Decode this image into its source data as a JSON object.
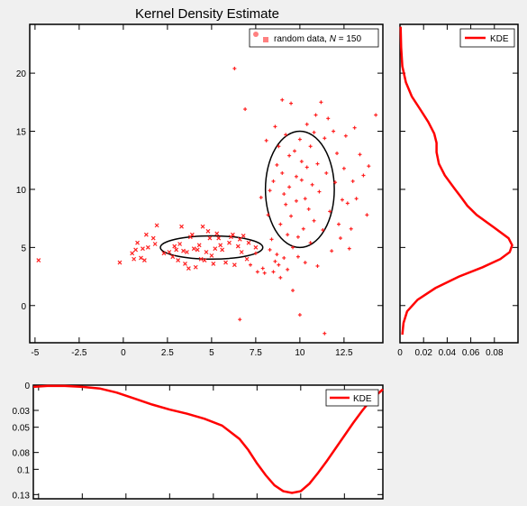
{
  "chart_data": [
    {
      "id": "scatter",
      "type": "scatter",
      "title": "Kernel Density Estimate",
      "xlim": [
        -5.3,
        14.7
      ],
      "ylim": [
        -3.2,
        24.2
      ],
      "xticks": [
        -5,
        -2.5,
        0,
        2.5,
        5,
        7.5,
        10,
        12.5
      ],
      "xtick_labels": [
        "-5",
        "-2.5",
        "0",
        "2.5",
        "5",
        "7.5",
        "10",
        "12.5"
      ],
      "yticks": [
        0,
        5,
        10,
        15,
        20
      ],
      "ytick_labels": [
        "0",
        "5",
        "10",
        "15",
        "20"
      ],
      "legend": {
        "label_prefix": "random data, ",
        "label_n": "N",
        "label_eq": " = ",
        "label_value": "150",
        "position": "top-right"
      },
      "colors": {
        "points": "#ff2020",
        "ellipse": "#000000",
        "legend_circle": "#ff8080",
        "legend_square": "#ff8080"
      },
      "series": [
        {
          "marker": "x",
          "points": [
            [
              -4.8,
              3.9
            ],
            [
              -0.2,
              3.7
            ],
            [
              0.5,
              4.5
            ],
            [
              0.6,
              4.0
            ],
            [
              0.7,
              4.8
            ],
            [
              0.8,
              5.4
            ],
            [
              1.0,
              4.1
            ],
            [
              1.1,
              4.9
            ],
            [
              1.2,
              3.9
            ],
            [
              1.3,
              6.1
            ],
            [
              1.4,
              5.0
            ],
            [
              1.7,
              5.8
            ],
            [
              1.8,
              5.3
            ],
            [
              1.9,
              6.9
            ],
            [
              2.3,
              4.5
            ],
            [
              2.6,
              4.6
            ],
            [
              2.8,
              4.2
            ],
            [
              2.9,
              5.1
            ],
            [
              3.0,
              4.8
            ],
            [
              3.1,
              3.9
            ],
            [
              3.2,
              5.3
            ],
            [
              3.3,
              6.8
            ],
            [
              3.4,
              4.7
            ],
            [
              3.5,
              3.6
            ],
            [
              3.6,
              4.6
            ],
            [
              3.7,
              3.2
            ],
            [
              3.8,
              5.9
            ],
            [
              3.9,
              6.1
            ],
            [
              4.0,
              4.9
            ],
            [
              4.1,
              3.3
            ],
            [
              4.2,
              4.8
            ],
            [
              4.3,
              5.2
            ],
            [
              4.4,
              4.0
            ],
            [
              4.5,
              6.8
            ],
            [
              4.6,
              3.9
            ],
            [
              4.7,
              4.6
            ],
            [
              4.8,
              6.4
            ],
            [
              4.9,
              5.8
            ],
            [
              5.0,
              4.3
            ],
            [
              5.1,
              3.6
            ],
            [
              5.2,
              4.9
            ],
            [
              5.3,
              6.2
            ],
            [
              5.4,
              5.8
            ],
            [
              5.5,
              5.2
            ],
            [
              5.6,
              4.8
            ],
            [
              5.8,
              3.7
            ],
            [
              6.0,
              5.4
            ],
            [
              6.1,
              5.9
            ],
            [
              6.2,
              6.1
            ],
            [
              6.3,
              3.5
            ],
            [
              6.5,
              5.1
            ],
            [
              6.6,
              5.7
            ],
            [
              6.7,
              4.6
            ],
            [
              6.8,
              6.0
            ],
            [
              7.0,
              4.0
            ],
            [
              7.1,
              5.4
            ],
            [
              7.5,
              5.0
            ]
          ]
        },
        {
          "marker": "+",
          "points": [
            [
              6.3,
              20.4
            ],
            [
              6.6,
              -1.2
            ],
            [
              6.9,
              16.9
            ],
            [
              7.2,
              3.5
            ],
            [
              7.5,
              4.5
            ],
            [
              7.6,
              2.9
            ],
            [
              7.8,
              9.3
            ],
            [
              7.9,
              3.2
            ],
            [
              8.0,
              2.8
            ],
            [
              8.1,
              14.2
            ],
            [
              8.2,
              7.8
            ],
            [
              8.3,
              4.8
            ],
            [
              8.3,
              9.9
            ],
            [
              8.4,
              5.7
            ],
            [
              8.5,
              10.7
            ],
            [
              8.5,
              2.9
            ],
            [
              8.6,
              3.8
            ],
            [
              8.6,
              15.4
            ],
            [
              8.7,
              12.1
            ],
            [
              8.7,
              4.4
            ],
            [
              8.8,
              13.7
            ],
            [
              8.8,
              3.5
            ],
            [
              8.9,
              7.0
            ],
            [
              8.9,
              2.4
            ],
            [
              9.0,
              17.7
            ],
            [
              9.0,
              11.4
            ],
            [
              9.1,
              9.6
            ],
            [
              9.1,
              4.1
            ],
            [
              9.2,
              14.7
            ],
            [
              9.2,
              8.7
            ],
            [
              9.3,
              6.1
            ],
            [
              9.3,
              3.1
            ],
            [
              9.4,
              12.9
            ],
            [
              9.4,
              10.2
            ],
            [
              9.5,
              17.4
            ],
            [
              9.5,
              7.7
            ],
            [
              9.6,
              5.0
            ],
            [
              9.6,
              1.3
            ],
            [
              9.7,
              13.3
            ],
            [
              9.8,
              11.1
            ],
            [
              9.8,
              9.0
            ],
            [
              9.9,
              5.9
            ],
            [
              9.9,
              4.2
            ],
            [
              10.0,
              14.3
            ],
            [
              10.0,
              -0.8
            ],
            [
              10.1,
              10.8
            ],
            [
              10.1,
              12.4
            ],
            [
              10.2,
              6.6
            ],
            [
              10.3,
              9.2
            ],
            [
              10.3,
              3.7
            ],
            [
              10.4,
              15.6
            ],
            [
              10.4,
              11.9
            ],
            [
              10.5,
              8.3
            ],
            [
              10.6,
              5.4
            ],
            [
              10.6,
              13.7
            ],
            [
              10.7,
              10.4
            ],
            [
              10.8,
              14.9
            ],
            [
              10.8,
              7.3
            ],
            [
              10.9,
              16.4
            ],
            [
              11.0,
              12.2
            ],
            [
              11.0,
              3.4
            ],
            [
              11.1,
              9.8
            ],
            [
              11.2,
              17.5
            ],
            [
              11.3,
              6.5
            ],
            [
              11.4,
              14.4
            ],
            [
              11.4,
              -2.4
            ],
            [
              11.5,
              11.4
            ],
            [
              11.6,
              16.1
            ],
            [
              11.7,
              8.1
            ],
            [
              11.8,
              4.7
            ],
            [
              11.9,
              15.0
            ],
            [
              12.0,
              10.6
            ],
            [
              12.1,
              13.1
            ],
            [
              12.2,
              7.0
            ],
            [
              12.3,
              5.8
            ],
            [
              12.4,
              9.1
            ],
            [
              12.5,
              11.8
            ],
            [
              12.6,
              14.6
            ],
            [
              12.7,
              8.8
            ],
            [
              12.8,
              4.9
            ],
            [
              12.9,
              6.6
            ],
            [
              13.0,
              10.7
            ],
            [
              13.1,
              15.3
            ],
            [
              13.2,
              9.2
            ],
            [
              13.4,
              13.0
            ],
            [
              13.6,
              11.2
            ],
            [
              13.8,
              7.8
            ],
            [
              13.9,
              12.0
            ],
            [
              14.3,
              16.4
            ]
          ]
        }
      ],
      "ellipses": [
        {
          "cx": 5.0,
          "cy": 5.0,
          "rx": 2.9,
          "ry": 1.0
        },
        {
          "cx": 10.0,
          "cy": 10.0,
          "rx": 1.95,
          "ry": 5.0
        }
      ]
    },
    {
      "id": "kde_right",
      "type": "line",
      "orientation": "vertical",
      "xlim": [
        0,
        0.1
      ],
      "ylim": [
        -3.2,
        24.2
      ],
      "xticks": [
        0,
        0.02,
        0.04,
        0.06,
        0.08
      ],
      "xtick_labels": [
        "0",
        "0.02",
        "0.04",
        "0.06",
        "0.08"
      ],
      "legend": {
        "label": "KDE",
        "position": "top-right"
      },
      "color": "#ff0000",
      "density_x": [
        0.002,
        0.003,
        0.006,
        0.015,
        0.03,
        0.05,
        0.07,
        0.085,
        0.093,
        0.095,
        0.092,
        0.08,
        0.065,
        0.057,
        0.052,
        0.046,
        0.038,
        0.033,
        0.031,
        0.031,
        0.029,
        0.024,
        0.017,
        0.01,
        0.005,
        0.002,
        0.001,
        0.0005
      ],
      "value_y": [
        -2.5,
        -1.5,
        -0.5,
        0.5,
        1.5,
        2.5,
        3.3,
        4.0,
        4.6,
        5.2,
        5.8,
        6.7,
        7.8,
        8.6,
        9.3,
        10.1,
        11.2,
        12.2,
        13.2,
        14.0,
        14.8,
        15.8,
        16.9,
        18.0,
        19.2,
        20.6,
        22.2,
        24.0
      ]
    },
    {
      "id": "kde_bottom",
      "type": "line",
      "xlim": [
        -5.3,
        14.7
      ],
      "ylim": [
        0,
        0.135
      ],
      "yticks": [
        0,
        0.03,
        0.05,
        0.08,
        0.1,
        0.13
      ],
      "ytick_labels": [
        "0",
        "0.03",
        "0.05",
        "0.08",
        "0.1",
        "0.13"
      ],
      "legend": {
        "label": "KDE",
        "position": "top-right"
      },
      "color": "#ff0000",
      "x": [
        -5.3,
        -4.5,
        -3.5,
        -2.5,
        -1.5,
        -0.5,
        0.5,
        1.5,
        2.5,
        3.5,
        4.5,
        5.5,
        6.5,
        7.0,
        7.5,
        8.0,
        8.5,
        9.0,
        9.5,
        10.0,
        10.5,
        11.0,
        11.5,
        12.0,
        12.5,
        13.0,
        13.5,
        14.0,
        14.7
      ],
      "y": [
        0.002,
        0.001,
        0.001,
        0.002,
        0.004,
        0.009,
        0.016,
        0.023,
        0.029,
        0.034,
        0.04,
        0.048,
        0.064,
        0.077,
        0.093,
        0.107,
        0.119,
        0.126,
        0.128,
        0.126,
        0.117,
        0.104,
        0.09,
        0.075,
        0.06,
        0.045,
        0.031,
        0.018,
        0.005
      ]
    }
  ]
}
